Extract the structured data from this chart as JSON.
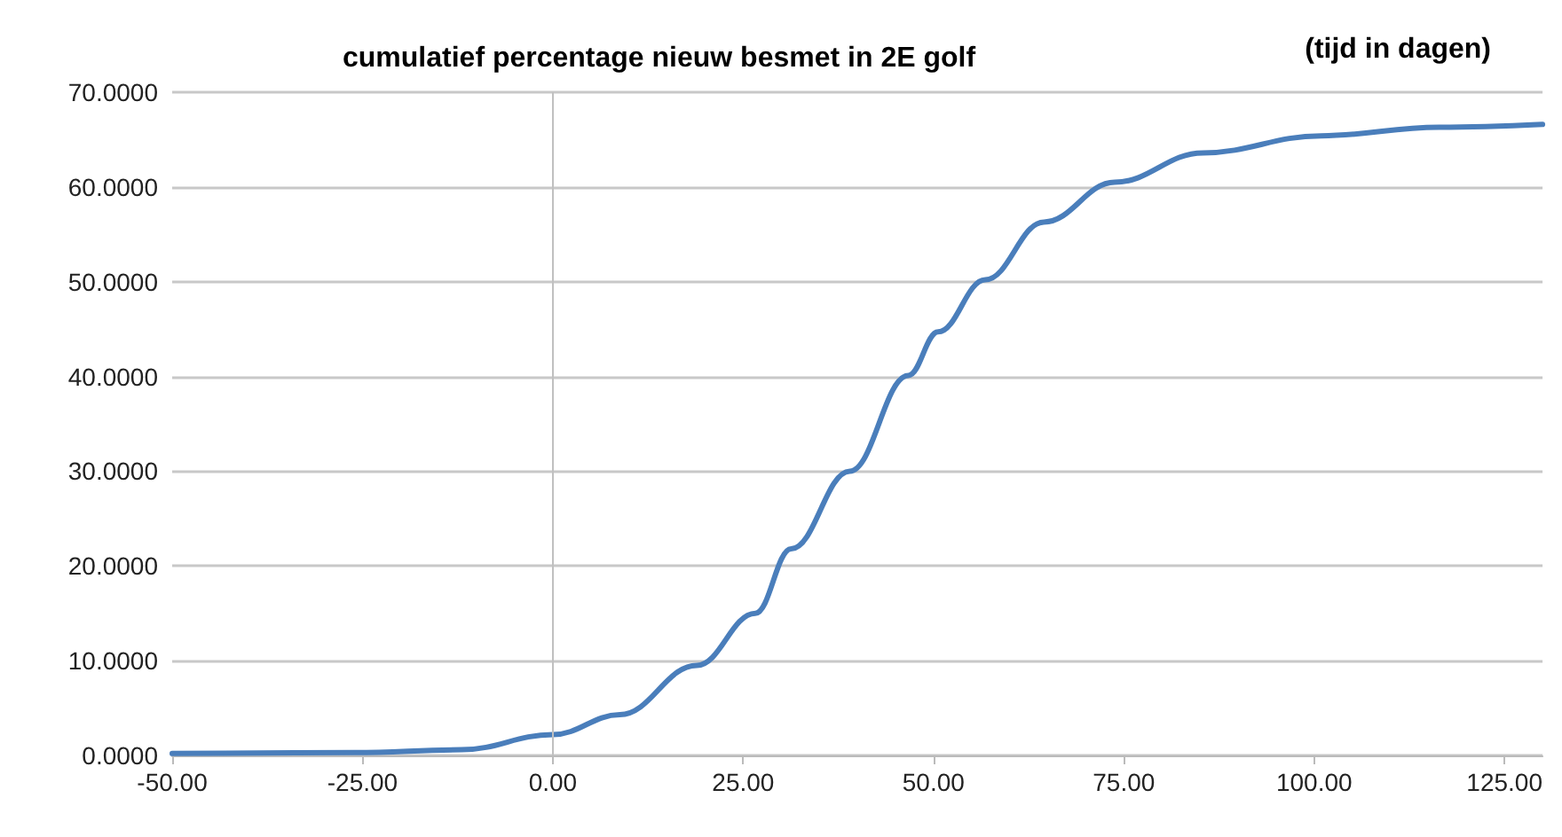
{
  "chart_data": {
    "type": "line",
    "title": "cumulatief percentage nieuw besmet in 2E golf",
    "xlabel": "(tijd in dagen)",
    "x": [
      -50,
      -26,
      -12,
      0,
      8.8,
      18.9,
      26.6,
      31.3,
      39,
      46.7,
      50.6,
      56.8,
      64.5,
      73.8,
      85.4,
      100.9,
      116.4,
      130
    ],
    "series": [
      {
        "color": "#4a7ebb",
        "values": [
          0.2,
          0.3,
          0.6,
          2.2,
          4.3,
          9.5,
          15,
          21.8,
          30,
          40.1,
          44.7,
          50.2,
          56.3,
          60.5,
          63.6,
          65.4,
          66.3,
          66.6
        ]
      }
    ],
    "xlim": [
      -50,
      130
    ],
    "ylim": [
      0,
      70
    ],
    "xticks": [
      {
        "value": -50,
        "label": "-50.00"
      },
      {
        "value": -25,
        "label": "-25.00"
      },
      {
        "value": 0,
        "label": "0.00"
      },
      {
        "value": 25,
        "label": "25.00"
      },
      {
        "value": 50,
        "label": "50.00"
      },
      {
        "value": 75,
        "label": "75.00"
      },
      {
        "value": 100,
        "label": "100.00"
      },
      {
        "value": 125,
        "label": "125.00"
      }
    ],
    "yticks": [
      {
        "value": 0,
        "label": "0.0000"
      },
      {
        "value": 10,
        "label": "10.0000"
      },
      {
        "value": 20,
        "label": "20.0000"
      },
      {
        "value": 30,
        "label": "30.0000"
      },
      {
        "value": 40,
        "label": "40.0000"
      },
      {
        "value": 50,
        "label": "50.0000"
      },
      {
        "value": 60,
        "label": "60.0000"
      },
      {
        "value": 70,
        "label": "70.0000"
      }
    ],
    "ref_lines": [
      {
        "axis": "x",
        "value": 0,
        "color": "#c0c0c0"
      }
    ],
    "grid": "y",
    "marker": "none",
    "line_style": "solid"
  }
}
